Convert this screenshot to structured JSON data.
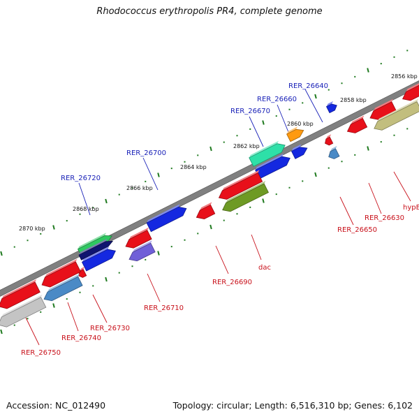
{
  "title": "Rhodococcus erythropolis PR4, complete genome",
  "footer": {
    "accession": "Accession: NC_012490",
    "summary": "Topology: circular; Length: 6,516,310 bp; Genes: 6,102"
  },
  "colors": {
    "backbone": "#808080",
    "tick_mark": "#1f7a1f",
    "label_blue": "#1a22b8",
    "label_red": "#c8101a",
    "gene_red": "#e8101a",
    "gene_blue": "#1428e0",
    "gene_navy": "#0f1470",
    "gene_green": "#2ec860",
    "gene_aquamarine": "#2ee0a8",
    "gene_orange": "#ff9a10",
    "gene_olive": "#6e9a24",
    "gene_khaki": "#c2be7e",
    "gene_steelblue": "#4a8ac6",
    "gene_slateblue": "#7060d8",
    "gene_silver": "#c4c4c4"
  },
  "scale_labels": [
    "2856 kbp",
    "2858 kbp",
    "2860 kbp",
    "2862 kbp",
    "2864 kbp",
    "2866 kbp",
    "2868 kbp",
    "2870 kbp"
  ],
  "genes": [
    {
      "id": "RER_26640",
      "color": "gene_blue"
    },
    {
      "id": "RER_26660",
      "color": "gene_orange"
    },
    {
      "id": "RER_26670",
      "color": "gene_aquamarine"
    },
    {
      "id": "RER_26700",
      "color": "gene_blue"
    },
    {
      "id": "RER_26720",
      "color": "gene_green"
    },
    {
      "id": "RER_26650",
      "color": "gene_steelblue"
    },
    {
      "id": "RER_26630",
      "color": "gene_red"
    },
    {
      "id": "hypE",
      "color": "gene_khaki"
    },
    {
      "id": "dac",
      "color": "gene_olive"
    },
    {
      "id": "RER_26690",
      "color": "gene_red"
    },
    {
      "id": "RER_26710",
      "color": "gene_slateblue"
    },
    {
      "id": "RER_26730",
      "color": "gene_red"
    },
    {
      "id": "RER_26740",
      "color": "gene_steelblue"
    },
    {
      "id": "RER_26750",
      "color": "gene_silver"
    }
  ]
}
